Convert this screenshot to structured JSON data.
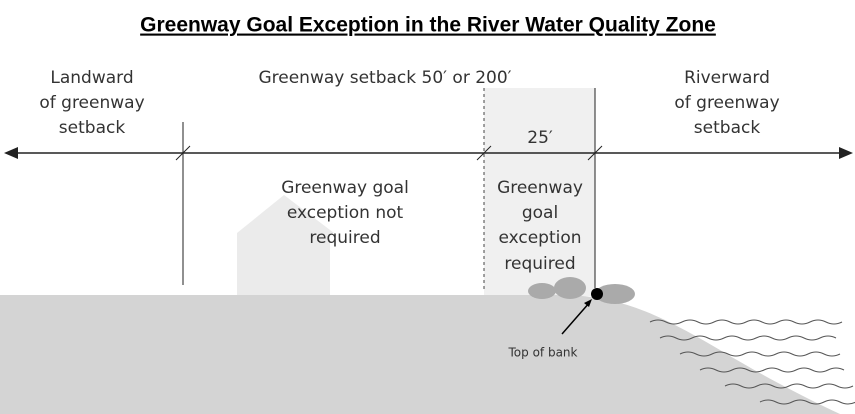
{
  "title": "Greenway Goal Exception in the River Water Quality Zone",
  "zones": {
    "landward": [
      "Landward",
      "of greenway",
      "setback"
    ],
    "setback": "Greenway setback 50′ or 200′",
    "riverward": [
      "Riverward",
      "of greenway",
      "setback"
    ],
    "buffer": "25′"
  },
  "areas": {
    "not_required": [
      "Greenway goal",
      "exception not",
      "required"
    ],
    "required": [
      "Greenway",
      "goal",
      "exception",
      "required"
    ]
  },
  "callout": "Top of bank"
}
